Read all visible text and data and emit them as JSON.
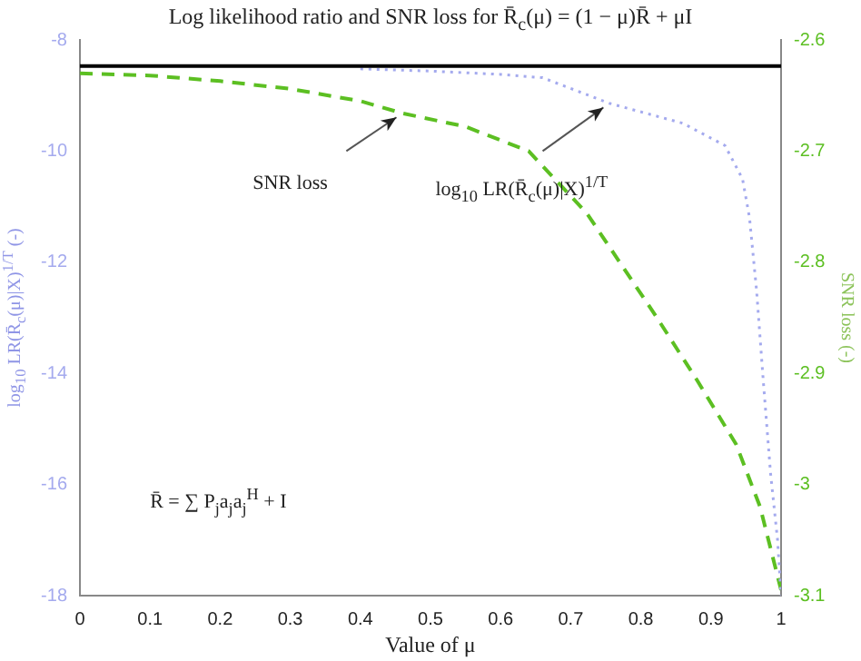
{
  "chart_data": {
    "type": "line",
    "title": "Log likelihood ratio and SNR loss for R̄$_{c}$(μ) = (1 − μ)R̄ + μI",
    "xlabel": "Value of μ",
    "ylabel": "log$_{10}$ LR(R̄$_{c}$(μ)|X)$^{1/T}$ (-)",
    "y2label": "SNR loss (-)",
    "annotations": [
      "SNR loss",
      "log$_{10}$ LR(R̄$_{c}$(μ)|X)$^{1/T}$",
      "R̄ = ∑ P$_{j}$a$_{j}$a$_{j}$$^{H}$ + I"
    ],
    "series": [
      {
        "color": "#a4aaee",
        "line_style": "dotted",
        "axis": "y",
        "x": [
          0.4,
          0.5,
          0.6,
          0.66,
          0.755,
          0.86,
          0.92,
          0.945,
          0.955,
          0.965,
          0.975,
          0.985,
          0.995,
          1
        ],
        "values": [
          -8.52,
          -8.56,
          -8.62,
          -8.68,
          -9.14,
          -9.5,
          -9.9,
          -10.5,
          -11.2,
          -12.5,
          -14.2,
          -15.8,
          -17.0,
          -18
        ]
      },
      {
        "color": "#5cbf22",
        "line_style": "dashed",
        "axis": "y2",
        "x": [
          0,
          0.1,
          0.2,
          0.3,
          0.4,
          0.46,
          0.55,
          0.64,
          0.723,
          0.822,
          0.88,
          0.936,
          0.97,
          1
        ],
        "values": [
          -2.63,
          -2.632,
          -2.637,
          -2.644,
          -2.655,
          -2.666,
          -2.678,
          -2.7,
          -2.756,
          -2.849,
          -2.906,
          -2.964,
          -3.02,
          -3.095
        ]
      }
    ],
    "ref_lines": [
      {
        "axis": "y",
        "value": -8.47,
        "color": "#000000"
      }
    ],
    "xlim": [
      0,
      1
    ],
    "xticks": [
      0,
      0.1,
      0.2,
      0.3,
      0.4,
      0.5,
      0.6,
      0.7,
      0.8,
      0.9,
      1
    ],
    "ylim": [
      -18,
      -8
    ],
    "yticks": [
      -18,
      -16,
      -14,
      -12,
      -10,
      -8
    ],
    "y2lim": [
      -3.1,
      -2.6
    ],
    "y2ticks": [
      -3.1,
      -3,
      -2.9,
      -2.8,
      -2.7,
      -2.6
    ],
    "grid": false,
    "legend": false,
    "marker": "none"
  }
}
